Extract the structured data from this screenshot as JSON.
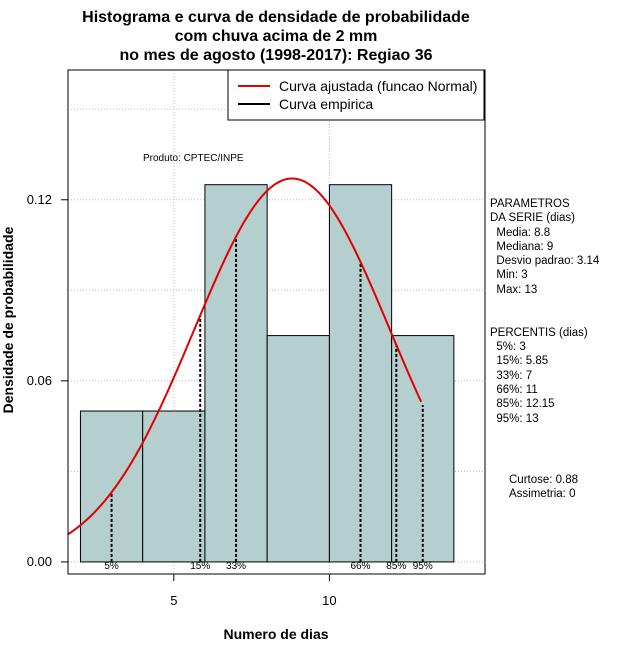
{
  "chart_data": {
    "type": "bar",
    "title_lines": [
      "Histograma e curva de densidade de probabilidade",
      "com chuva acima de 2 mm",
      "no mes de agosto (1998-2017): Regiao 36"
    ],
    "xlabel": "Numero de dias",
    "ylabel": "Densidade de probabilidade",
    "xlim": [
      1.6,
      15.0
    ],
    "ylim": [
      -0.004,
      0.163
    ],
    "x_ticks": [
      5,
      10
    ],
    "y_ticks": [
      "0.00",
      "0.06",
      "0.12"
    ],
    "grid": true,
    "legend_position": "top-right",
    "bins": [
      {
        "from": 2,
        "to": 4,
        "density": 0.05
      },
      {
        "from": 4,
        "to": 6,
        "density": 0.05
      },
      {
        "from": 6,
        "to": 8,
        "density": 0.125
      },
      {
        "from": 8,
        "to": 10,
        "density": 0.075
      },
      {
        "from": 10,
        "to": 12,
        "density": 0.125
      },
      {
        "from": 12,
        "to": 14,
        "density": 0.075
      }
    ],
    "fitted_curve": {
      "name": "Curva ajustada (funcao Normal)",
      "distribution": "normal",
      "mean": 8.8,
      "sd": 3.14,
      "x_range": [
        1.6,
        12.95
      ]
    },
    "empirical_curve": {
      "name": "Curva empirica"
    },
    "percentile_lines": [
      {
        "label": "5%",
        "x": 3
      },
      {
        "label": "15%",
        "x": 5.85
      },
      {
        "label": "33%",
        "x": 7
      },
      {
        "label": "66%",
        "x": 11
      },
      {
        "label": "85%",
        "x": 12.15
      },
      {
        "label": "95%",
        "x": 13
      }
    ],
    "annotation": "Produto: CPTEC/INPE",
    "colors": {
      "bars": "#b5cfcf",
      "fitted_curve": "#e00000",
      "empirical_curve": "#000000",
      "grid": "#bbbbbb"
    }
  },
  "sidebar": {
    "parametros": [
      "PARAMETROS",
      "DA SERIE (dias)",
      "  Media: 8.8",
      "  Mediana: 9",
      "  Desvio padrao: 3.14",
      "  Min: 3",
      "  Max: 13"
    ],
    "percentis": [
      "PERCENTIS (dias)",
      "  5%: 3",
      "  15%: 5.85",
      "  33%: 7",
      "  66%: 11",
      "  85%: 12.15",
      "  95%: 13"
    ],
    "curtose": "Curtose: 0.88",
    "assimetria": "Assimetria: 0"
  }
}
